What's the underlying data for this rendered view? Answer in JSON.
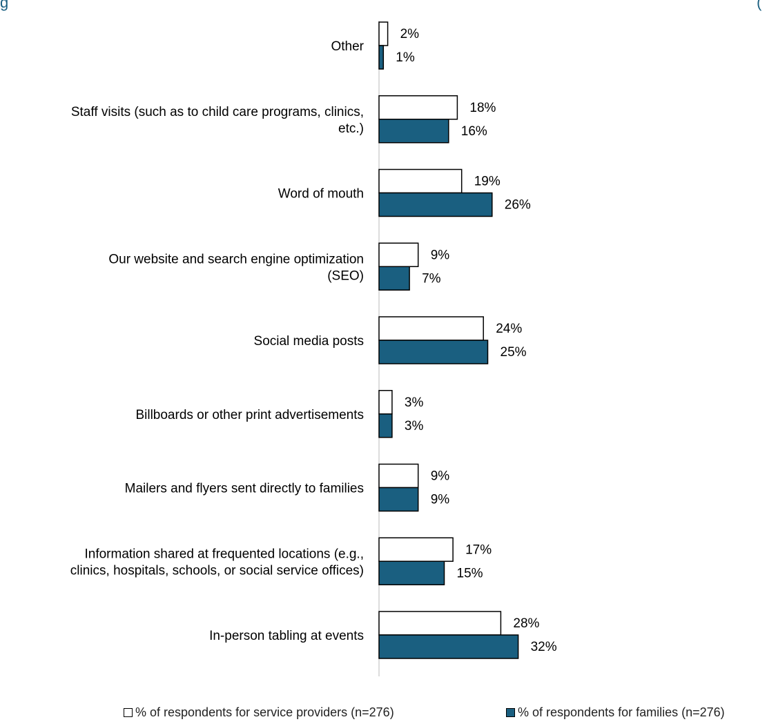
{
  "colors": {
    "service_providers": "#ffffff",
    "families": "#1a5f80",
    "bar_outline": "#000000",
    "title_text": "#1a5f80"
  },
  "header_fragment": "g",
  "header_fragment_right": "(",
  "chart_data": {
    "type": "bar",
    "orientation": "horizontal",
    "categories": [
      "Other",
      "Staff visits (such as to child care programs, clinics, etc.)",
      "Word of mouth",
      "Our website and search engine optimization (SEO)",
      "Social media posts",
      "Billboards or other print advertisements",
      "Mailers and flyers sent directly to families",
      "Information shared at frequented locations (e.g., clinics, hospitals, schools, or social service offices)",
      "In-person tabling at events"
    ],
    "category_lines": [
      [
        "Other"
      ],
      [
        "Staff visits (such as to child care programs, clinics,",
        "etc.)"
      ],
      [
        "Word of mouth"
      ],
      [
        "Our website and search engine optimization",
        "(SEO)"
      ],
      [
        "Social media posts"
      ],
      [
        "Billboards or other print advertisements"
      ],
      [
        "Mailers and flyers sent directly to families"
      ],
      [
        "Information shared at frequented locations (e.g.,",
        "clinics, hospitals, schools, or social service offices)"
      ],
      [
        "In-person tabling at events"
      ]
    ],
    "series": [
      {
        "name": "% of respondents for service providers (n=276)",
        "values": [
          2,
          18,
          19,
          9,
          24,
          3,
          9,
          17,
          28
        ],
        "labels": [
          "2%",
          "18%",
          "19%",
          "9%",
          "24%",
          "3%",
          "9%",
          "17%",
          "28%"
        ]
      },
      {
        "name": "% of respondents for families (n=276)",
        "values": [
          1,
          16,
          26,
          7,
          25,
          3,
          9,
          15,
          32
        ],
        "labels": [
          "1%",
          "16%",
          "26%",
          "7%",
          "25%",
          "3%",
          "9%",
          "15%",
          "32%"
        ]
      }
    ],
    "xlim": [
      0,
      100
    ],
    "legend_position": "bottom",
    "grid": false
  }
}
